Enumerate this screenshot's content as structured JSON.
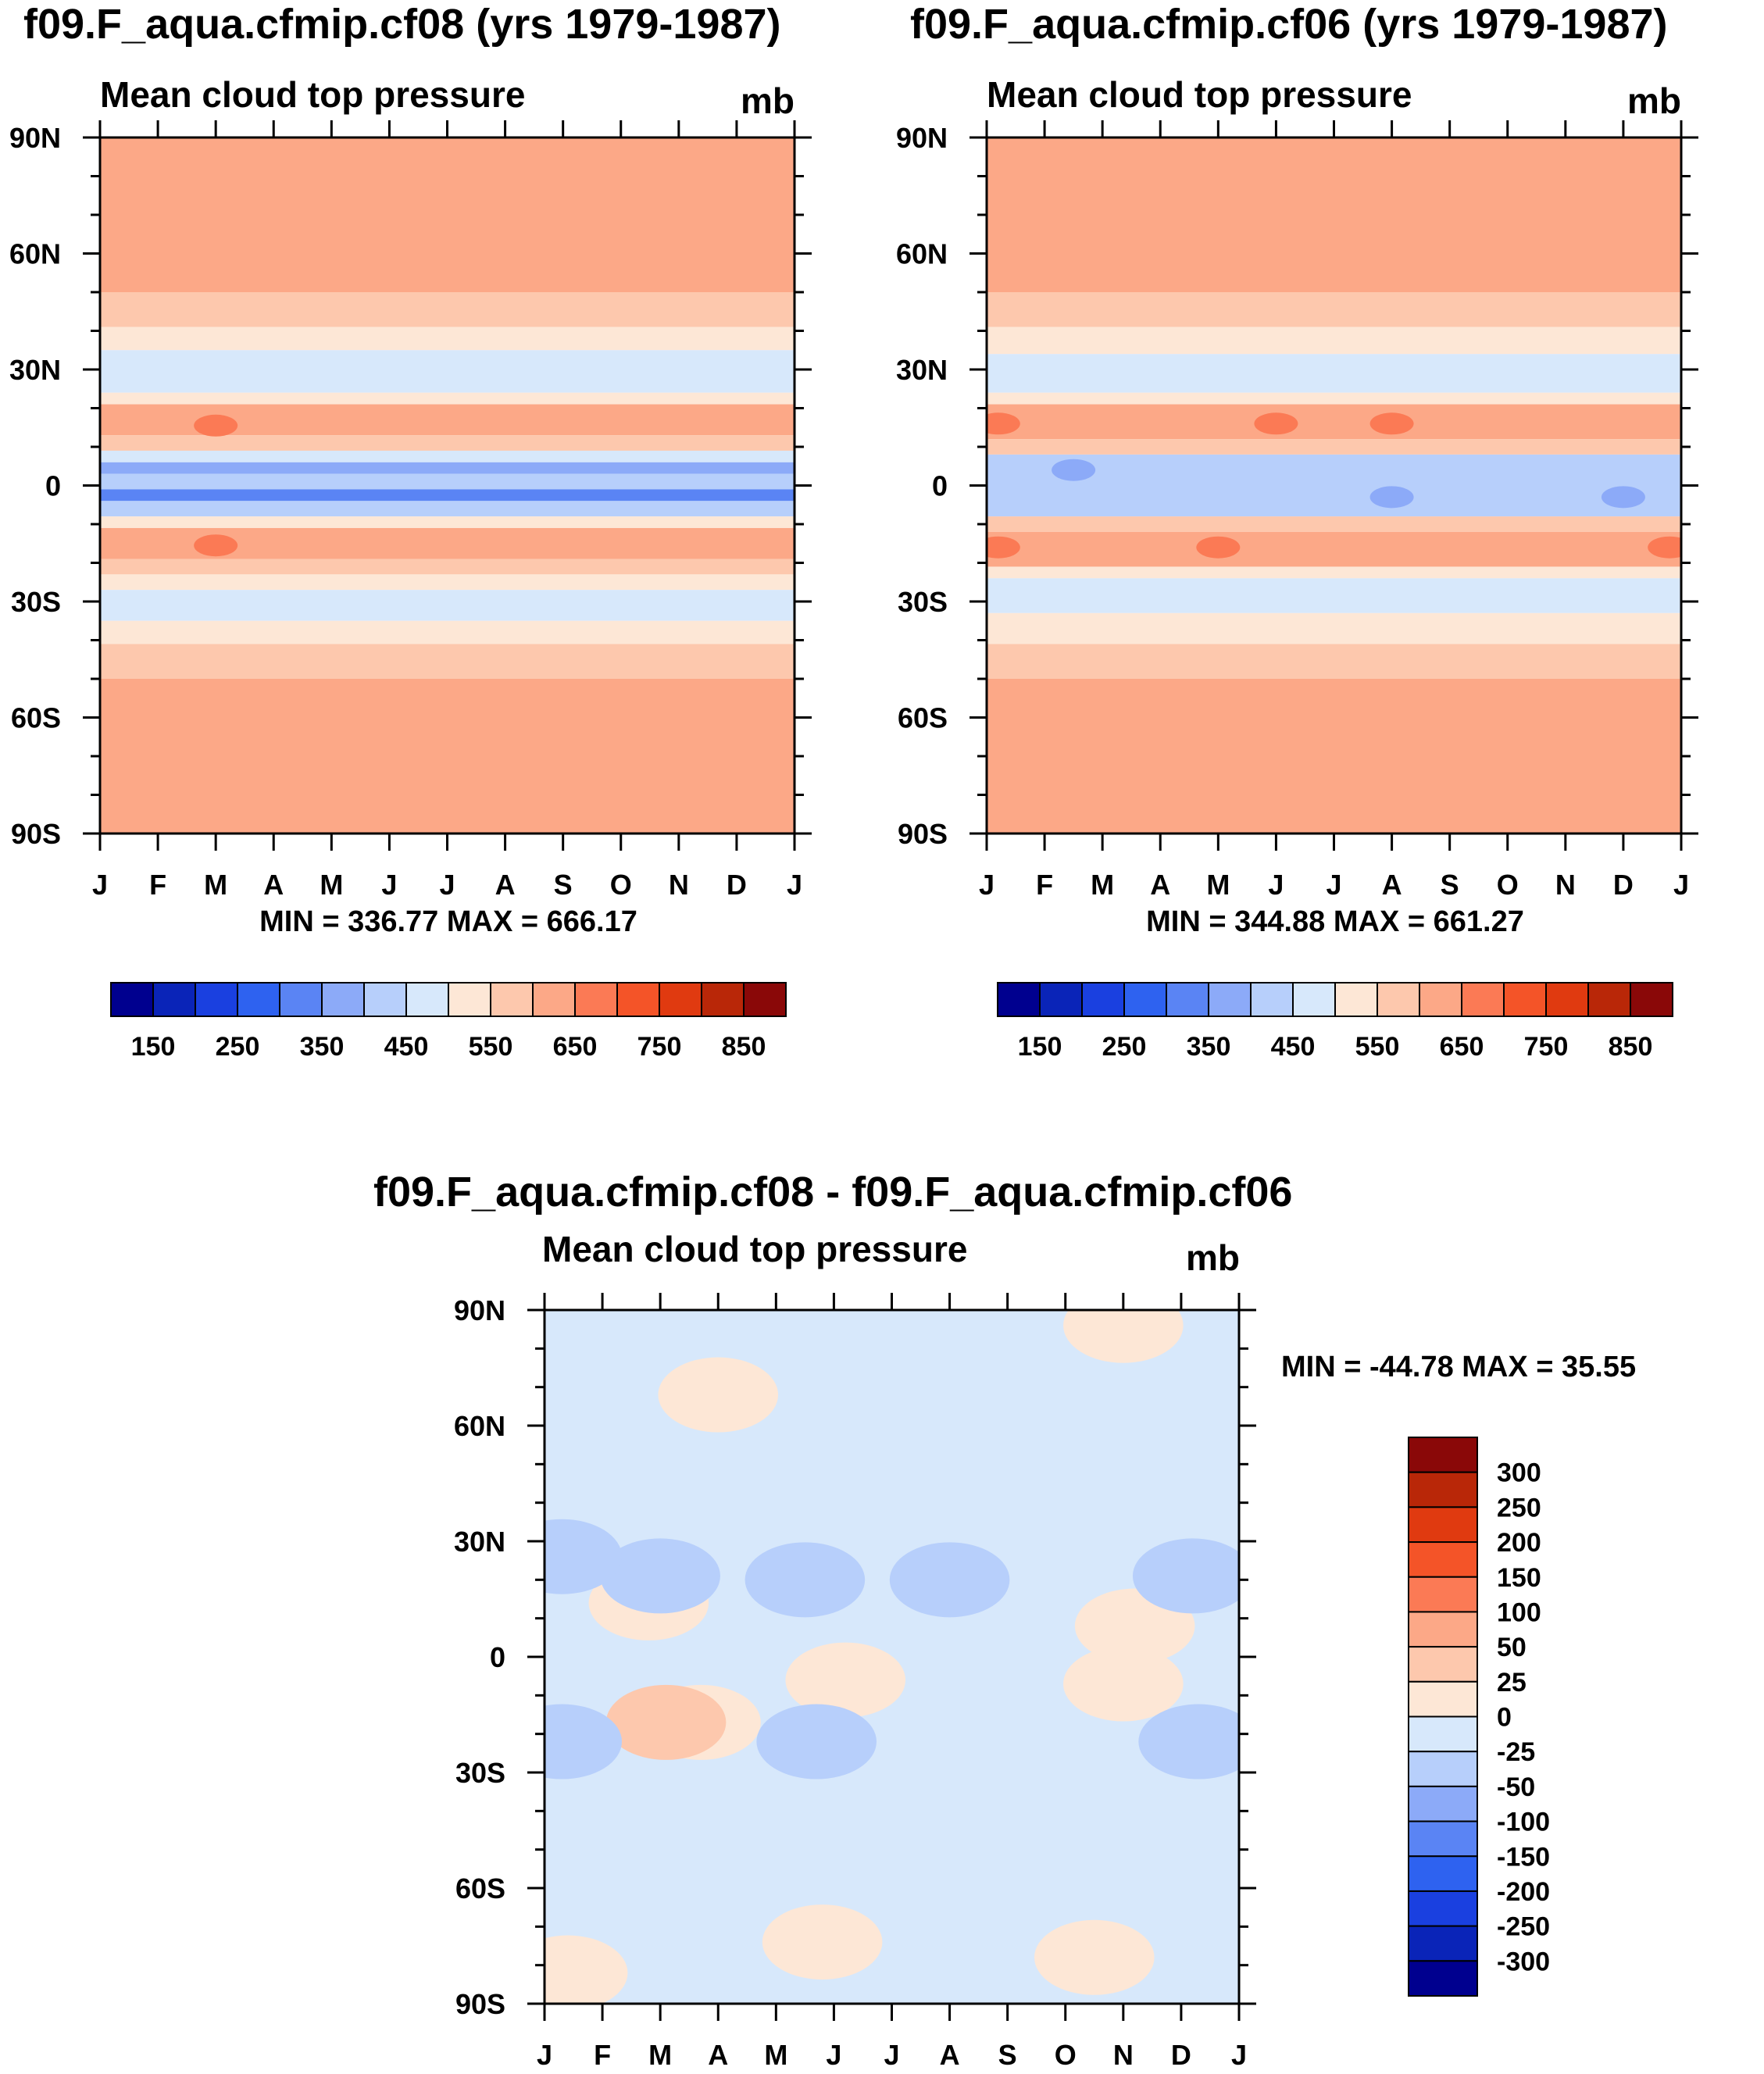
{
  "palette": [
    "#00008f",
    "#0a24b8",
    "#1a40e0",
    "#2e62f0",
    "#5a84f4",
    "#8caaf8",
    "#b7cffb",
    "#d7e8fb",
    "#fde7d6",
    "#fdc8ad",
    "#fca887",
    "#fb7a55",
    "#f45428",
    "#e03a10",
    "#b92708",
    "#8a0808"
  ],
  "chart_data": [
    {
      "id": "cf08",
      "type": "contour",
      "title": "f09.F_aqua.cfmip.cf08 (yrs 1979-1987)",
      "subtitle": "Mean cloud top pressure",
      "units": "mb",
      "xlabel": "",
      "ylabel": "",
      "x_ticks": [
        "J",
        "F",
        "M",
        "A",
        "M",
        "J",
        "J",
        "A",
        "S",
        "O",
        "N",
        "D",
        "J"
      ],
      "y_ticks": [
        "90N",
        "60N",
        "30N",
        "0",
        "30S",
        "60S",
        "90S"
      ],
      "ylim": [
        -90,
        90
      ],
      "stats": "MIN = 336.77 MAX = 666.17",
      "colorbar": {
        "orientation": "horizontal",
        "levels": [
          100,
          150,
          200,
          250,
          300,
          350,
          400,
          450,
          500,
          550,
          600,
          650,
          700,
          750,
          800,
          850,
          900
        ],
        "labels": [
          "150",
          "250",
          "350",
          "450",
          "550",
          "650",
          "750",
          "850"
        ]
      },
      "bands": [
        {
          "from": 90,
          "to": 50,
          "value": 620
        },
        {
          "from": 50,
          "to": 41,
          "value": 580
        },
        {
          "from": 41,
          "to": 35,
          "value": 530
        },
        {
          "from": 35,
          "to": 24,
          "value": 470
        },
        {
          "from": 24,
          "to": 21,
          "value": 530
        },
        {
          "from": 21,
          "to": 13,
          "value": 640
        },
        {
          "from": 13,
          "to": 9,
          "value": 580
        },
        {
          "from": 9,
          "to": 6,
          "value": 470
        },
        {
          "from": 6,
          "to": 3,
          "value": 375
        },
        {
          "from": 3,
          "to": -1,
          "value": 410
        },
        {
          "from": -1,
          "to": -4,
          "value": 340
        },
        {
          "from": -4,
          "to": -8,
          "value": 410
        },
        {
          "from": -8,
          "to": -11,
          "value": 530
        },
        {
          "from": -11,
          "to": -19,
          "value": 640
        },
        {
          "from": -19,
          "to": -23,
          "value": 580
        },
        {
          "from": -23,
          "to": -27,
          "value": 530
        },
        {
          "from": -27,
          "to": -35,
          "value": 470
        },
        {
          "from": -35,
          "to": -41,
          "value": 530
        },
        {
          "from": -41,
          "to": -50,
          "value": 580
        },
        {
          "from": -50,
          "to": -90,
          "value": 620
        }
      ],
      "blobs": [
        {
          "month": 2.0,
          "lat": 15.5,
          "value": 670
        },
        {
          "month": 2.0,
          "lat": -15.5,
          "value": 670
        }
      ]
    },
    {
      "id": "cf06",
      "type": "contour",
      "title": "f09.F_aqua.cfmip.cf06 (yrs 1979-1987)",
      "subtitle": "Mean cloud top pressure",
      "units": "mb",
      "xlabel": "",
      "ylabel": "",
      "x_ticks": [
        "J",
        "F",
        "M",
        "A",
        "M",
        "J",
        "J",
        "A",
        "S",
        "O",
        "N",
        "D",
        "J"
      ],
      "y_ticks": [
        "90N",
        "60N",
        "30N",
        "0",
        "30S",
        "60S",
        "90S"
      ],
      "ylim": [
        -90,
        90
      ],
      "stats": "MIN = 344.88 MAX = 661.27",
      "colorbar": {
        "orientation": "horizontal",
        "levels": [
          100,
          150,
          200,
          250,
          300,
          350,
          400,
          450,
          500,
          550,
          600,
          650,
          700,
          750,
          800,
          850,
          900
        ],
        "labels": [
          "150",
          "250",
          "350",
          "450",
          "550",
          "650",
          "750",
          "850"
        ]
      },
      "bands": [
        {
          "from": 90,
          "to": 50,
          "value": 620
        },
        {
          "from": 50,
          "to": 41,
          "value": 580
        },
        {
          "from": 41,
          "to": 34,
          "value": 530
        },
        {
          "from": 34,
          "to": 24,
          "value": 470
        },
        {
          "from": 24,
          "to": 21,
          "value": 530
        },
        {
          "from": 21,
          "to": 12,
          "value": 640
        },
        {
          "from": 12,
          "to": 8,
          "value": 580
        },
        {
          "from": 8,
          "to": -8,
          "value": 410
        },
        {
          "from": -8,
          "to": -12,
          "value": 580
        },
        {
          "from": -12,
          "to": -21,
          "value": 640
        },
        {
          "from": -21,
          "to": -24,
          "value": 530
        },
        {
          "from": -24,
          "to": -33,
          "value": 470
        },
        {
          "from": -33,
          "to": -41,
          "value": 530
        },
        {
          "from": -41,
          "to": -50,
          "value": 580
        },
        {
          "from": -50,
          "to": -90,
          "value": 620
        }
      ],
      "blobs": [
        {
          "month": 0.2,
          "lat": 16,
          "value": 670
        },
        {
          "month": 5.0,
          "lat": 16,
          "value": 670
        },
        {
          "month": 7.0,
          "lat": 16,
          "value": 670
        },
        {
          "month": 0.2,
          "lat": -16,
          "value": 670
        },
        {
          "month": 4.0,
          "lat": -16,
          "value": 670
        },
        {
          "month": 11.8,
          "lat": -16,
          "value": 670
        },
        {
          "month": 1.5,
          "lat": 4,
          "value": 375
        },
        {
          "month": 7.0,
          "lat": -3,
          "value": 375
        },
        {
          "month": 11.0,
          "lat": -3,
          "value": 375
        }
      ]
    },
    {
      "id": "diff",
      "type": "contour",
      "title": "f09.F_aqua.cfmip.cf08 - f09.F_aqua.cfmip.cf06",
      "subtitle": "Mean cloud top pressure",
      "units": "mb",
      "xlabel": "",
      "ylabel": "",
      "x_ticks": [
        "J",
        "F",
        "M",
        "A",
        "M",
        "J",
        "J",
        "A",
        "S",
        "O",
        "N",
        "D",
        "J"
      ],
      "y_ticks": [
        "90N",
        "60N",
        "30N",
        "0",
        "30S",
        "60S",
        "90S"
      ],
      "ylim": [
        -90,
        90
      ],
      "stats": "MIN = -44.78 MAX =  35.55",
      "colorbar": {
        "orientation": "vertical",
        "levels": [
          -350,
          -300,
          -250,
          -200,
          -150,
          -100,
          -50,
          -25,
          0,
          25,
          50,
          100,
          150,
          200,
          250,
          300,
          350
        ],
        "labels": [
          "300",
          "250",
          "200",
          "150",
          "100",
          "50",
          "25",
          "0",
          "-25",
          "-50",
          "-100",
          "-150",
          "-200",
          "-250",
          "-300"
        ]
      },
      "background_value": -10,
      "blobs": [
        {
          "month": 3.0,
          "lat": 68,
          "value": 10
        },
        {
          "month": 10.0,
          "lat": 86,
          "value": 10
        },
        {
          "month": 1.8,
          "lat": 14,
          "value": 10
        },
        {
          "month": 10.2,
          "lat": 8,
          "value": 10
        },
        {
          "month": 2.7,
          "lat": -17,
          "value": 10
        },
        {
          "month": 2.1,
          "lat": -17,
          "value": 40
        },
        {
          "month": 5.2,
          "lat": -6,
          "value": 10
        },
        {
          "month": 10.0,
          "lat": -7,
          "value": 10
        },
        {
          "month": 0.4,
          "lat": -82,
          "value": 10
        },
        {
          "month": 4.8,
          "lat": -74,
          "value": 10
        },
        {
          "month": 9.5,
          "lat": -78,
          "value": 10
        },
        {
          "month": 2.0,
          "lat": 21,
          "value": -30
        },
        {
          "month": 4.5,
          "lat": 20,
          "value": -30
        },
        {
          "month": 7.0,
          "lat": 20,
          "value": -30
        },
        {
          "month": 0.3,
          "lat": 26,
          "value": -30
        },
        {
          "month": 11.2,
          "lat": 21,
          "value": -30
        },
        {
          "month": 0.3,
          "lat": -22,
          "value": -30
        },
        {
          "month": 4.7,
          "lat": -22,
          "value": -30
        },
        {
          "month": 11.3,
          "lat": -22,
          "value": -30
        }
      ]
    }
  ]
}
